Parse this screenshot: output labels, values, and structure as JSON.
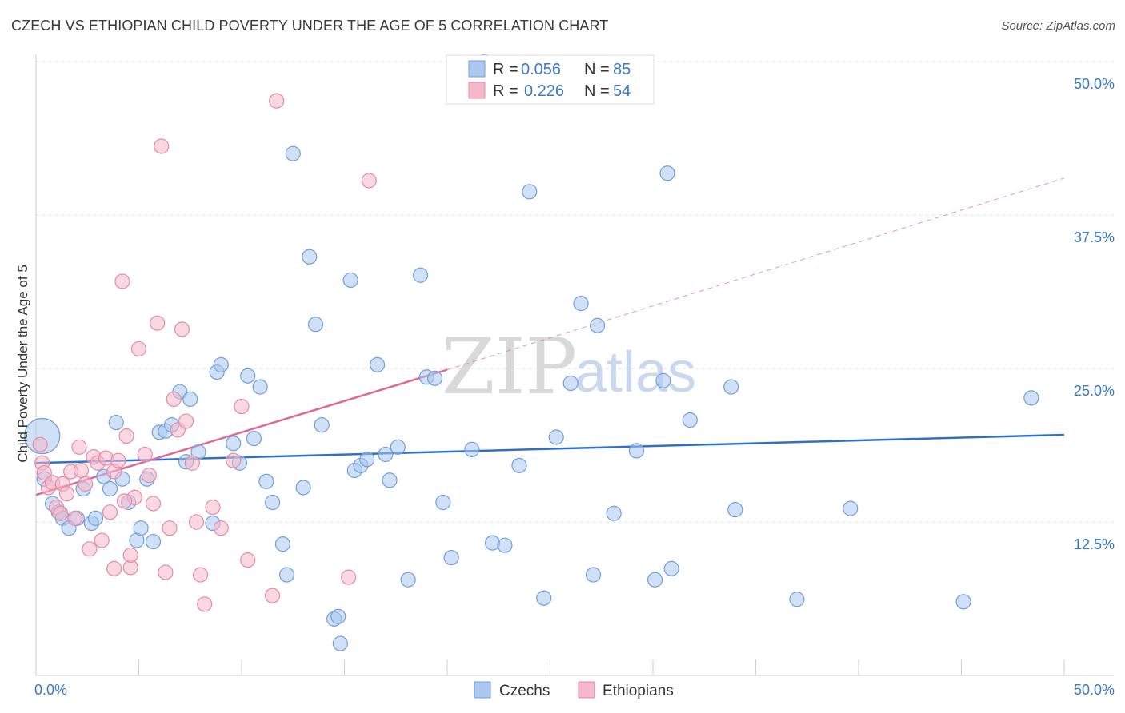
{
  "title": "CZECH VS ETHIOPIAN CHILD POVERTY UNDER THE AGE OF 5 CORRELATION CHART",
  "source": "Source: ZipAtlas.com",
  "watermark": {
    "zip": "ZIP",
    "atlas": "atlas"
  },
  "legend_top": [
    {
      "r_label": "R =",
      "r_value": "0.056",
      "n_label": "N =",
      "n_value": "85",
      "color": "#aac8f0",
      "stroke": "#6f9fdc"
    },
    {
      "r_label": "R =",
      "r_value": "0.226",
      "n_label": "N =",
      "n_value": "54",
      "color": "#f5b8cb",
      "stroke": "#e58aa7"
    }
  ],
  "legend_bottom": [
    {
      "label": "Czechs",
      "color": "#aac8f0",
      "stroke": "#6f9fdc"
    },
    {
      "label": "Ethiopians",
      "color": "#f5b8cb",
      "stroke": "#e58aa7"
    }
  ],
  "chart_data": {
    "type": "scatter",
    "title": "CZECH VS ETHIOPIAN CHILD POVERTY UNDER THE AGE OF 5 CORRELATION CHART",
    "xlabel": "",
    "ylabel": "Child Poverty Under the Age of 5",
    "xlim": [
      0,
      50
    ],
    "ylim": [
      0,
      50
    ],
    "x_tick_labels": [
      "0.0%",
      "50.0%"
    ],
    "y_ticks": [
      12.5,
      25.0,
      37.5,
      50.0
    ],
    "y_tick_labels": [
      "12.5%",
      "25.0%",
      "37.5%",
      "50.0%"
    ],
    "grid": true,
    "legend_position": "top-center",
    "series": [
      {
        "name": "Czechs",
        "color": "#aac8f0",
        "stroke": "#6f9fdc",
        "trend": {
          "x": [
            0,
            50
          ],
          "y": [
            17.3,
            19.6
          ],
          "color": "#2e6fcf"
        },
        "points": [
          [
            0.3,
            19.5
          ],
          [
            0.4,
            16.0
          ],
          [
            0.8,
            14.0
          ],
          [
            1.1,
            13.3
          ],
          [
            1.3,
            12.8
          ],
          [
            1.6,
            12.0
          ],
          [
            2.0,
            12.8
          ],
          [
            2.3,
            15.2
          ],
          [
            2.7,
            12.4
          ],
          [
            2.9,
            12.8
          ],
          [
            3.3,
            16.2
          ],
          [
            3.6,
            15.2
          ],
          [
            3.9,
            20.6
          ],
          [
            4.2,
            16.0
          ],
          [
            4.5,
            14.1
          ],
          [
            4.9,
            11.0
          ],
          [
            5.1,
            12.0
          ],
          [
            5.4,
            16.0
          ],
          [
            5.7,
            10.9
          ],
          [
            6.0,
            19.8
          ],
          [
            6.3,
            19.9
          ],
          [
            6.6,
            20.4
          ],
          [
            7.0,
            23.1
          ],
          [
            7.3,
            17.4
          ],
          [
            7.5,
            22.5
          ],
          [
            7.9,
            18.2
          ],
          [
            8.6,
            12.4
          ],
          [
            8.8,
            24.7
          ],
          [
            9.0,
            25.3
          ],
          [
            9.6,
            18.9
          ],
          [
            9.9,
            17.3
          ],
          [
            10.3,
            24.4
          ],
          [
            10.6,
            19.3
          ],
          [
            10.9,
            23.5
          ],
          [
            11.2,
            15.8
          ],
          [
            11.5,
            14.1
          ],
          [
            12.0,
            10.7
          ],
          [
            12.2,
            8.2
          ],
          [
            12.5,
            42.5
          ],
          [
            13.0,
            15.3
          ],
          [
            13.3,
            34.1
          ],
          [
            13.6,
            28.6
          ],
          [
            13.9,
            20.4
          ],
          [
            14.5,
            4.6
          ],
          [
            14.7,
            4.8
          ],
          [
            14.8,
            2.6
          ],
          [
            15.3,
            32.2
          ],
          [
            15.5,
            16.7
          ],
          [
            15.8,
            17.1
          ],
          [
            16.1,
            17.6
          ],
          [
            16.6,
            25.3
          ],
          [
            17.0,
            18.0
          ],
          [
            17.2,
            15.9
          ],
          [
            17.6,
            18.6
          ],
          [
            18.1,
            7.8
          ],
          [
            18.7,
            32.6
          ],
          [
            19.0,
            24.3
          ],
          [
            19.4,
            24.2
          ],
          [
            19.8,
            14.1
          ],
          [
            20.2,
            9.6
          ],
          [
            21.2,
            18.4
          ],
          [
            21.8,
            50.0
          ],
          [
            22.2,
            10.8
          ],
          [
            22.8,
            10.6
          ],
          [
            23.5,
            17.1
          ],
          [
            24.0,
            39.4
          ],
          [
            24.7,
            6.3
          ],
          [
            25.3,
            19.4
          ],
          [
            26.0,
            23.8
          ],
          [
            26.5,
            30.3
          ],
          [
            27.1,
            8.2
          ],
          [
            27.3,
            28.5
          ],
          [
            28.1,
            13.2
          ],
          [
            29.2,
            18.3
          ],
          [
            30.1,
            7.8
          ],
          [
            30.5,
            24.0
          ],
          [
            30.7,
            40.9
          ],
          [
            30.9,
            8.7
          ],
          [
            31.8,
            20.8
          ],
          [
            33.8,
            23.5
          ],
          [
            34.0,
            13.5
          ],
          [
            37.0,
            6.2
          ],
          [
            39.6,
            13.6
          ],
          [
            45.1,
            6.0
          ],
          [
            48.4,
            22.6
          ]
        ]
      },
      {
        "name": "Ethiopians",
        "color": "#f5b8cb",
        "stroke": "#e58aa7",
        "trend": {
          "x": [
            0,
            20
          ],
          "y": [
            14.7,
            24.9
          ],
          "dashed_to": [
            50,
            40.5
          ],
          "color": "#e06895"
        },
        "points": [
          [
            0.2,
            18.8
          ],
          [
            0.3,
            17.3
          ],
          [
            0.4,
            16.5
          ],
          [
            0.6,
            15.3
          ],
          [
            0.8,
            15.7
          ],
          [
            1.0,
            13.7
          ],
          [
            1.2,
            13.2
          ],
          [
            1.3,
            15.6
          ],
          [
            1.5,
            14.8
          ],
          [
            1.7,
            16.6
          ],
          [
            1.9,
            12.8
          ],
          [
            2.1,
            18.6
          ],
          [
            2.4,
            15.6
          ],
          [
            2.6,
            10.3
          ],
          [
            2.8,
            17.8
          ],
          [
            3.0,
            17.3
          ],
          [
            3.2,
            11.0
          ],
          [
            3.4,
            17.7
          ],
          [
            3.6,
            13.3
          ],
          [
            3.8,
            16.6
          ],
          [
            4.0,
            17.5
          ],
          [
            4.2,
            32.1
          ],
          [
            4.4,
            19.5
          ],
          [
            4.6,
            8.8
          ],
          [
            4.8,
            14.5
          ],
          [
            5.0,
            26.6
          ],
          [
            5.3,
            18.0
          ],
          [
            5.5,
            16.3
          ],
          [
            5.7,
            14.0
          ],
          [
            5.9,
            28.7
          ],
          [
            6.1,
            43.1
          ],
          [
            6.3,
            8.4
          ],
          [
            6.5,
            12.0
          ],
          [
            6.7,
            22.5
          ],
          [
            6.9,
            20.0
          ],
          [
            7.1,
            28.2
          ],
          [
            7.3,
            20.7
          ],
          [
            7.6,
            17.3
          ],
          [
            7.8,
            12.5
          ],
          [
            8.0,
            8.2
          ],
          [
            8.2,
            5.8
          ],
          [
            8.6,
            13.7
          ],
          [
            9.0,
            12.0
          ],
          [
            9.6,
            17.5
          ],
          [
            10.0,
            21.9
          ],
          [
            10.3,
            9.4
          ],
          [
            11.5,
            6.5
          ],
          [
            11.7,
            46.8
          ],
          [
            15.2,
            8.0
          ],
          [
            16.2,
            40.3
          ],
          [
            4.6,
            9.8
          ],
          [
            3.8,
            8.7
          ],
          [
            4.3,
            14.2
          ],
          [
            2.2,
            16.7
          ]
        ]
      }
    ]
  }
}
